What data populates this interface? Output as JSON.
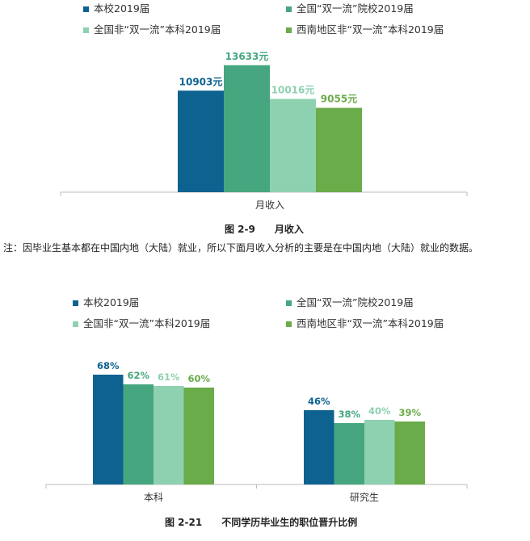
{
  "chart_data": [
    {
      "type": "bar",
      "categories": [
        "月收入"
      ],
      "series": [
        {
          "name": "本校2019届",
          "values": [
            10903
          ],
          "labels": [
            "10903元"
          ]
        },
        {
          "name": "全国“双一流”院校2019届",
          "values": [
            13633
          ],
          "labels": [
            "13633元"
          ]
        },
        {
          "name": "全国非“双一流”本科2019届",
          "values": [
            10016
          ],
          "labels": [
            "10016元"
          ]
        },
        {
          "name": "西南地区非“双一流”本科2019届",
          "values": [
            9055
          ],
          "labels": [
            "9055元"
          ]
        }
      ],
      "ylim": [
        0,
        15000
      ],
      "grid": false,
      "legend_position": "top",
      "caption": "图 2-9　　月收入"
    },
    {
      "type": "bar",
      "categories": [
        "本科",
        "研究生"
      ],
      "series": [
        {
          "name": "本校2019届",
          "values": [
            68,
            46
          ],
          "labels": [
            "68%",
            "46%"
          ]
        },
        {
          "name": "全国“双一流”院校2019届",
          "values": [
            62,
            38
          ],
          "labels": [
            "62%",
            "38%"
          ]
        },
        {
          "name": "全国非“双一流”本科2019届",
          "values": [
            61,
            40
          ],
          "labels": [
            "61%",
            "40%"
          ]
        },
        {
          "name": "西南地区非“双一流”本科2019届",
          "values": [
            60,
            39
          ],
          "labels": [
            "60%",
            "39%"
          ]
        }
      ],
      "ylim": [
        0,
        100
      ],
      "grid": false,
      "legend_position": "top",
      "caption": "图 2-21　　不同学历毕业生的职位晋升比例"
    }
  ],
  "colors": [
    "#0e6290",
    "#46a67f",
    "#8ed1b1",
    "#6aab4a"
  ],
  "note": "注：因毕业生基本都在中国内地（大陆）就业，所以下面月收入分析的主要是在中国内地（大陆）就业的数据。"
}
